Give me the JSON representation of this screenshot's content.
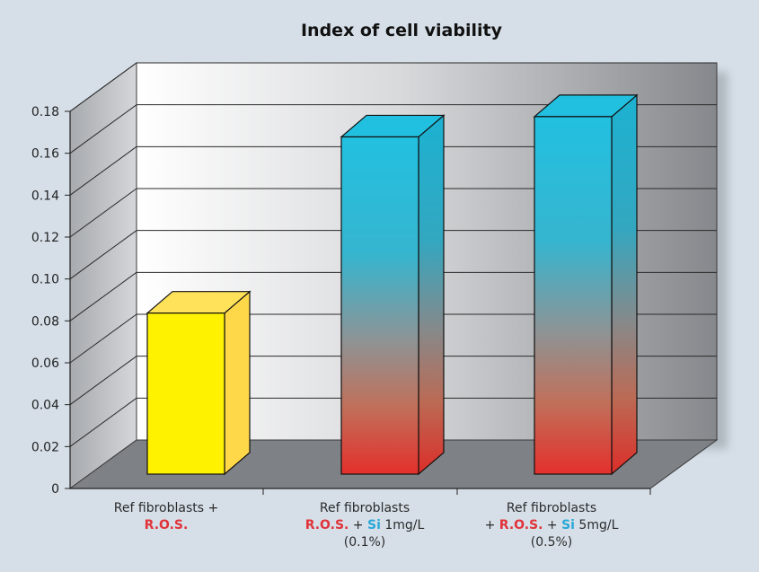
{
  "chart_data": {
    "type": "bar",
    "title": "Index of cell viability",
    "xlabel": "",
    "ylabel": "",
    "ylim": [
      0,
      0.18
    ],
    "yticks": [
      "0",
      "0.02",
      "0.04",
      "0.06",
      "0.08",
      "0.10",
      "0.12",
      "0.14",
      "0.16",
      "0.18"
    ],
    "grid": true,
    "categories": [
      {
        "line1": "Ref fibroblasts +",
        "line2": {
          "ros": "R.O.S."
        }
      },
      {
        "line1": "Ref fibroblasts",
        "line2": {
          "ros": "R.O.S.",
          "plus": " + ",
          "si": "Si",
          "rest": " 1mg/L"
        },
        "line3": "(0.1%)"
      },
      {
        "line1": "Ref fibroblasts",
        "line2": {
          "lead": "+ ",
          "ros": "R.O.S.",
          "plus": " + ",
          "si": "Si",
          "rest": " 5mg/L"
        },
        "line3": "(0.5%)"
      }
    ],
    "values": [
      0.0795,
      0.1665,
      0.1765
    ],
    "bar_styles": [
      "yellow",
      "gradient",
      "gradient"
    ]
  },
  "colors": {
    "background": "#d6dfe8",
    "yellow_front": "#fff200",
    "yellow_top": "#ffe25a",
    "yellow_side": "#ffd84a",
    "cyan": "#22c0e0",
    "red": "#e4302c",
    "floor": "#7e8185",
    "ros_text": "#e0343a",
    "si_text": "#2aa8d8"
  }
}
